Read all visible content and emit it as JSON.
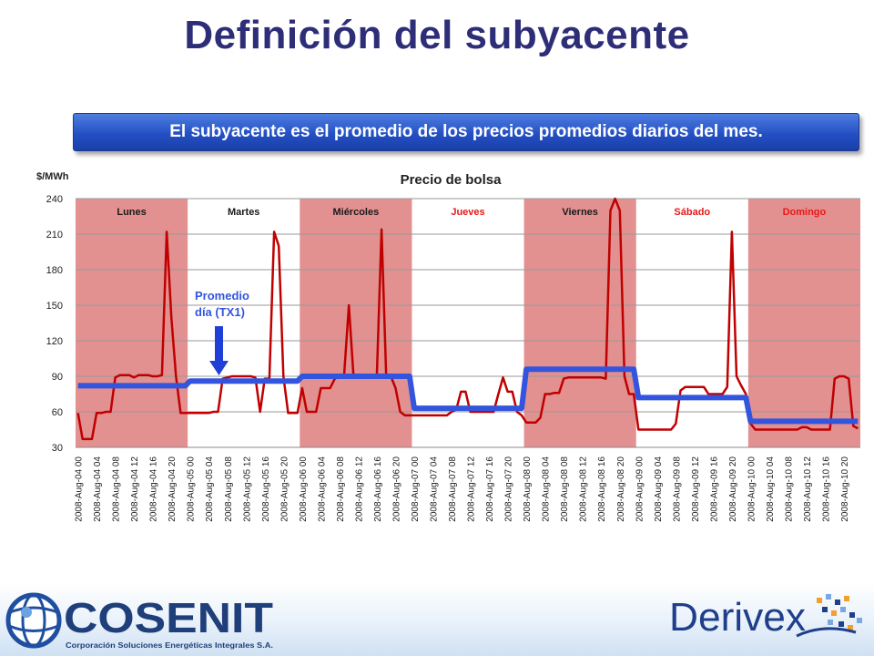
{
  "slide": {
    "title": "Definición del subyacente",
    "banner": "El subyacente es el promedio de los precios promedios diarios del mes."
  },
  "annotation": {
    "line1": "Promedio",
    "line2": "día (TX1)"
  },
  "logos": {
    "cosenit_name": "COSENIT",
    "cosenit_sub": "Corporación Soluciones Energéticas Integrales S.A.",
    "derivex_name": "Derivex"
  },
  "colors": {
    "title": "#2e2e78",
    "banner": "#2450c4",
    "price_line": "#c00000",
    "avg_line": "#3355dd",
    "day_band": "#e39090",
    "weekend_text": "#e81818"
  },
  "chart_data": {
    "type": "line",
    "title": "Precio de bolsa",
    "ylabel": "$/MWh",
    "xlabel": "",
    "ylim": [
      30,
      240
    ],
    "yticks": [
      30,
      60,
      90,
      120,
      150,
      180,
      210,
      240
    ],
    "grid": true,
    "legend": "none",
    "x_tick_labels": [
      "2008-Aug-04 00",
      "2008-Aug-04 04",
      "2008-Aug-04 08",
      "2008-Aug-04 12",
      "2008-Aug-04 16",
      "2008-Aug-04 20",
      "2008-Aug-05 00",
      "2008-Aug-05 04",
      "2008-Aug-05 08",
      "2008-Aug-05 12",
      "2008-Aug-05 16",
      "2008-Aug-05 20",
      "2008-Aug-06 00",
      "2008-Aug-06 04",
      "2008-Aug-06 08",
      "2008-Aug-06 12",
      "2008-Aug-06 16",
      "2008-Aug-06 20",
      "2008-Aug-07 00",
      "2008-Aug-07 04",
      "2008-Aug-07 08",
      "2008-Aug-07 12",
      "2008-Aug-07 16",
      "2008-Aug-07 20",
      "2008-Aug-08 00",
      "2008-Aug-08 04",
      "2008-Aug-08 08",
      "2008-Aug-08 12",
      "2008-Aug-08 16",
      "2008-Aug-08 20",
      "2008-Aug-09 00",
      "2008-Aug-09 04",
      "2008-Aug-09 08",
      "2008-Aug-09 12",
      "2008-Aug-09 16",
      "2008-Aug-09 20",
      "2008-Aug-10 00",
      "2008-Aug-10 04",
      "2008-Aug-10 08",
      "2008-Aug-10 12",
      "2008-Aug-10 16",
      "2008-Aug-10 20"
    ],
    "days": [
      {
        "label": "Lunes",
        "shaded": true,
        "weekend": false
      },
      {
        "label": "Martes",
        "shaded": false,
        "weekend": false
      },
      {
        "label": "Miércoles",
        "shaded": true,
        "weekend": false
      },
      {
        "label": "Jueves",
        "shaded": false,
        "weekend": true
      },
      {
        "label": "Viernes",
        "shaded": true,
        "weekend": false
      },
      {
        "label": "Sábado",
        "shaded": false,
        "weekend": true
      },
      {
        "label": "Domingo",
        "shaded": true,
        "weekend": true
      }
    ],
    "series": [
      {
        "type": "hourly_price",
        "values": [
          59,
          37,
          37,
          37,
          59,
          59,
          60,
          60,
          89,
          91,
          91,
          91,
          89,
          91,
          91,
          91,
          90,
          90,
          91,
          212,
          140,
          90,
          59,
          59,
          59,
          59,
          59,
          59,
          59,
          60,
          60,
          88,
          89,
          90,
          90,
          90,
          90,
          90,
          89,
          60,
          88,
          88,
          212,
          200,
          90,
          59,
          59,
          59,
          80,
          60,
          60,
          60,
          80,
          80,
          80,
          88,
          90,
          91,
          150,
          90,
          90,
          90,
          90,
          90,
          90,
          214,
          90,
          90,
          80,
          60,
          57,
          57,
          57,
          57,
          57,
          57,
          57,
          57,
          57,
          57,
          60,
          62,
          77,
          77,
          60,
          60,
          60,
          60,
          60,
          60,
          75,
          89,
          77,
          77,
          60,
          57,
          51,
          51,
          51,
          55,
          75,
          75,
          76,
          76,
          88,
          89,
          89,
          89,
          89,
          89,
          89,
          89,
          89,
          88,
          230,
          240,
          230,
          90,
          75,
          75,
          45,
          45,
          45,
          45,
          45,
          45,
          45,
          45,
          50,
          78,
          81,
          81,
          81,
          81,
          81,
          75,
          75,
          75,
          75,
          81,
          212,
          90,
          82,
          75,
          50,
          45,
          45,
          45,
          45,
          45,
          45,
          45,
          45,
          45,
          45,
          47,
          47,
          45,
          45,
          45,
          45,
          45,
          88,
          90,
          90,
          88,
          48,
          46
        ]
      },
      {
        "type": "daily_average",
        "values": [
          82,
          86,
          90,
          63,
          96,
          72,
          52
        ]
      }
    ]
  }
}
